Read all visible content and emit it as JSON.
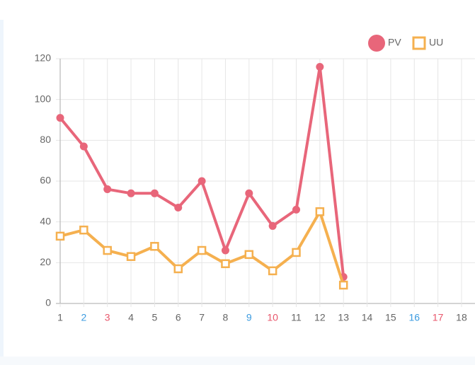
{
  "chart_data": {
    "type": "line",
    "categories": [
      "1",
      "2",
      "3",
      "4",
      "5",
      "6",
      "7",
      "8",
      "9",
      "10",
      "11",
      "12",
      "13",
      "14",
      "15",
      "16",
      "17",
      "18"
    ],
    "category_colors": [
      "#666666",
      "#3b9be0",
      "#e8566b",
      "#666666",
      "#666666",
      "#666666",
      "#666666",
      "#666666",
      "#3b9be0",
      "#e8566b",
      "#666666",
      "#666666",
      "#666666",
      "#666666",
      "#666666",
      "#3b9be0",
      "#e8566b",
      "#666666"
    ],
    "series": [
      {
        "name": "PV",
        "color": "#e8667a",
        "marker": "circle",
        "values": [
          91,
          77,
          56,
          54,
          54,
          47,
          60,
          26,
          54,
          38,
          46,
          116,
          13,
          null,
          null,
          null,
          null,
          null
        ]
      },
      {
        "name": "UU",
        "color": "#f5b04f",
        "marker": "square",
        "values": [
          33,
          36,
          26,
          23,
          28,
          17,
          26,
          19.5,
          24,
          16,
          25,
          45,
          9,
          null,
          null,
          null,
          null,
          null
        ]
      }
    ],
    "ylim": [
      0,
      120
    ],
    "yticks": [
      0,
      20,
      40,
      60,
      80,
      100,
      120
    ],
    "grid": true,
    "legend": "top-right"
  }
}
